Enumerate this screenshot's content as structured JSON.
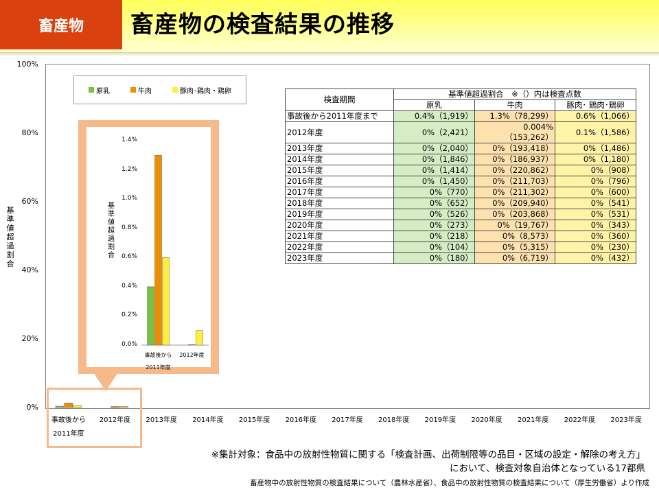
{
  "header": {
    "category_tag": "畜産物",
    "title": "畜産物の検査結果の推移"
  },
  "chart_data": [
    {
      "type": "bar",
      "ylabel": "基準値超過割合",
      "ylim": [
        0,
        100
      ],
      "y_ticks": [
        "100%",
        "80%",
        "60%",
        "40%",
        "20%",
        "0%"
      ],
      "categories": [
        "事故後から\n2011年度",
        "2012年度",
        "2013年度",
        "2014年度",
        "2015年度",
        "2016年度",
        "2017年度",
        "2018年度",
        "2019年度",
        "2020年度",
        "2021年度",
        "2022年度",
        "2023年度"
      ],
      "series": [
        {
          "name": "原乳",
          "color": "#7ac143",
          "values": [
            0.4,
            0,
            0,
            0,
            0,
            0,
            0,
            0,
            0,
            0,
            0,
            0,
            0
          ]
        },
        {
          "name": "牛肉",
          "color": "#f08c00",
          "values": [
            1.3,
            0.004,
            0,
            0,
            0,
            0,
            0,
            0,
            0,
            0,
            0,
            0,
            0
          ]
        },
        {
          "name": "豚肉･鶏肉・鶏卵",
          "color": "#ffef3a",
          "values": [
            0.6,
            0.1,
            0,
            0,
            0,
            0,
            0,
            0,
            0,
            0,
            0,
            0,
            0
          ]
        }
      ],
      "legend_position": "top-left",
      "grid": false
    },
    {
      "type": "bar",
      "ylabel": "基準値超過割合",
      "ylim": [
        0,
        1.4
      ],
      "y_ticks": [
        "1.4%",
        "1.2%",
        "1.0%",
        "0.8%",
        "0.6%",
        "0.4%",
        "0.2%",
        "0.0%"
      ],
      "categories": [
        "事故後から\n2011年度",
        "2012年度"
      ],
      "series": [
        {
          "name": "原乳",
          "values": [
            0.4,
            0
          ]
        },
        {
          "name": "牛肉",
          "values": [
            1.3,
            0.004
          ]
        },
        {
          "name": "豚肉･鶏肉・鶏卵",
          "values": [
            0.6,
            0.1
          ]
        }
      ]
    }
  ],
  "legend": [
    "原乳",
    "牛肉",
    "豚肉･鶏肉・鶏卵"
  ],
  "table": {
    "period_header": "検査期間",
    "group_header": "基準値超過割合　※（）内は検査点数",
    "col_headers": [
      "原乳",
      "牛肉",
      "豚肉･ 鶏肉･鶏卵"
    ],
    "rows": [
      {
        "period": "事故後から2011年度まで",
        "milk": "0.4%（1,919）",
        "beef": "1.3%（78,299）",
        "pork": "0.6%（1,066）"
      },
      {
        "period": "2012年度",
        "milk": "0%（2,421）",
        "beef": "0.004%\n（153,262）",
        "pork": "0.1%（1,586）"
      },
      {
        "period": "2013年度",
        "milk": "0%（2,040）",
        "beef": "0%（193,418）",
        "pork": "0%（1,486）"
      },
      {
        "period": "2014年度",
        "milk": "0%（1,846）",
        "beef": "0%（186,937）",
        "pork": "0%（1,180）"
      },
      {
        "period": "2015年度",
        "milk": "0%（1,414）",
        "beef": "0%（220,862）",
        "pork": "0%（908）"
      },
      {
        "period": "2016年度",
        "milk": "0%（1,450）",
        "beef": "0%（211,703）",
        "pork": "0%（796）"
      },
      {
        "period": "2017年度",
        "milk": "0%（770）",
        "beef": "0%（211,302）",
        "pork": "0%（600）"
      },
      {
        "period": "2018年度",
        "milk": "0%（652）",
        "beef": "0%（209,940）",
        "pork": "0%（541）"
      },
      {
        "period": "2019年度",
        "milk": "0%（526）",
        "beef": "0%（203,868）",
        "pork": "0%（531）"
      },
      {
        "period": "2020年度",
        "milk": "0%（273）",
        "beef": "0%（19,767）",
        "pork": "0%（343）"
      },
      {
        "period": "2021年度",
        "milk": "0%（218）",
        "beef": "0%（8,573）",
        "pork": "0%（360）"
      },
      {
        "period": "2022年度",
        "milk": "0%（104）",
        "beef": "0%（5,315）",
        "pork": "0%（230）"
      },
      {
        "period": "2023年度",
        "milk": "0%（180）",
        "beef": "0%（6,719）",
        "pork": "0%（432）"
      }
    ]
  },
  "note": "※集計対象：食品中の放射性物質に関する「検査計画、出荷制限等の品目・区域の設定・解除の考え方」において、検査対象自治体となっている17都県",
  "source": "畜産物中の放射性物質の検査結果について（農林水産省）、食品中の放射性物質の検査結果について（厚生労働省）より作成"
}
